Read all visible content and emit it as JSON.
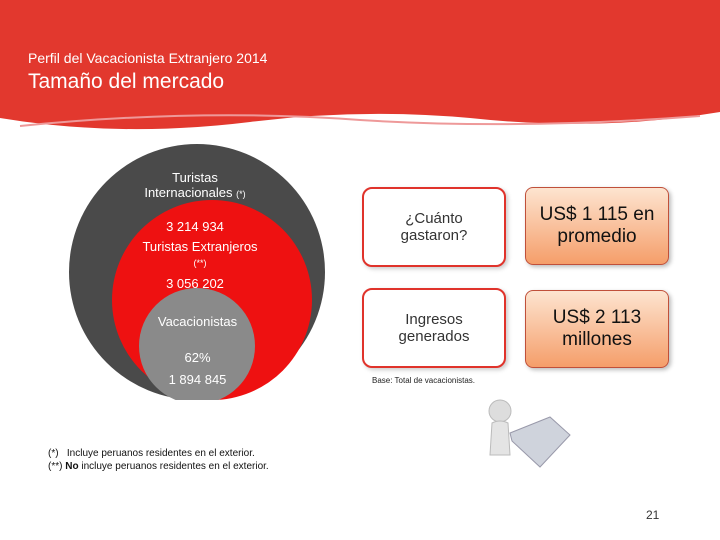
{
  "header": {
    "kicker": "Perfil del Vacacionista Extranjero 2014",
    "title": "Tamaño del mercado"
  },
  "circles": {
    "outer": {
      "label": "Turistas Internacionales",
      "note": "(*)",
      "value": "3 214 934"
    },
    "middle": {
      "label": "Turistas Extranjeros",
      "note": "(**)",
      "value": "3 056 202"
    },
    "inner": {
      "label": "Vacacionistas",
      "share": "62%",
      "value": "1 894 845"
    }
  },
  "boxes": [
    {
      "question": "¿Cuánto gastaron?",
      "answer": "US$ 1 115 en promedio"
    },
    {
      "question": "Ingresos generados",
      "answer": "US$ 2 113 millones"
    }
  ],
  "base": "Base: Total de vacacionistas.",
  "footnotes": [
    {
      "marker": "(*)",
      "text": "Incluye peruanos residentes en el exterior."
    },
    {
      "marker": "(**)",
      "emphasis": "No",
      "text": "incluye peruanos residentes en el exterior."
    }
  ],
  "page_number": "21"
}
